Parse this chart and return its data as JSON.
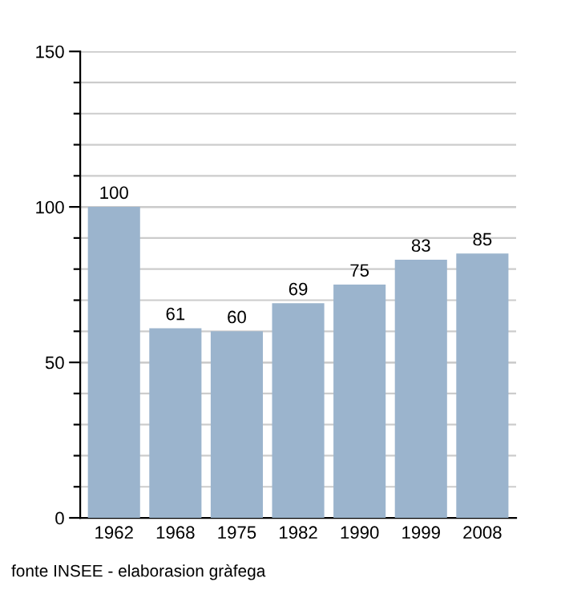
{
  "chart_data": {
    "type": "bar",
    "categories": [
      "1962",
      "1968",
      "1975",
      "1982",
      "1990",
      "1999",
      "2008"
    ],
    "values": [
      100,
      61,
      60,
      69,
      75,
      83,
      85
    ],
    "color": "#9bb4cd",
    "ylim": [
      0,
      150
    ],
    "yticks": [
      0,
      {
        "value": 10,
        "label": null
      },
      {
        "value": 20,
        "label": null
      },
      {
        "value": 30,
        "label": null
      },
      {
        "value": 40,
        "label": null
      },
      50,
      {
        "value": 60,
        "label": null
      },
      {
        "value": 70,
        "label": null
      },
      {
        "value": 80,
        "label": null
      },
      {
        "value": 90,
        "label": null
      },
      100,
      {
        "value": 110,
        "label": null
      },
      {
        "value": 120,
        "label": null
      },
      {
        "value": 130,
        "label": null
      },
      {
        "value": 140,
        "label": null
      },
      150
    ],
    "grid": "y",
    "data_labels": true,
    "annotations": [
      "fonte INSEE - elaborasion gràfega"
    ]
  }
}
